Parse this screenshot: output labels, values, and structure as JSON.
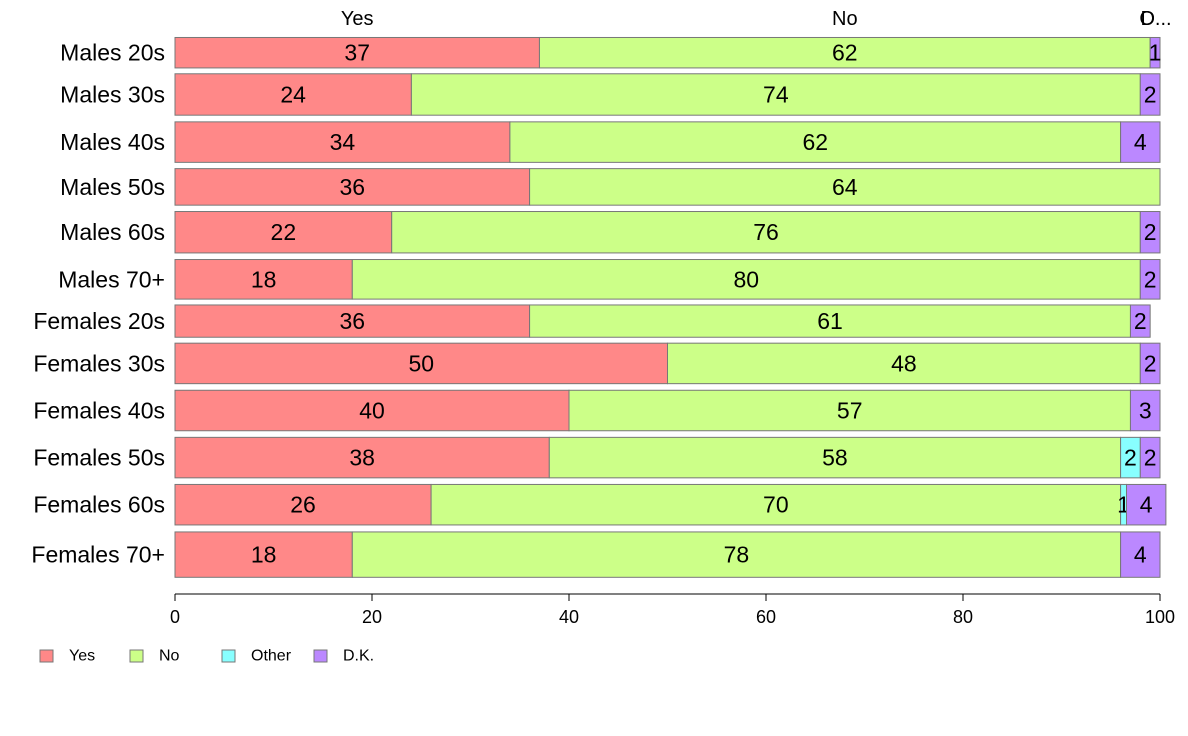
{
  "chart_data": {
    "type": "bar",
    "orientation": "horizontal",
    "stacked": true,
    "title": "",
    "xlabel": "",
    "ylabel": "",
    "xlim": [
      0,
      100
    ],
    "xticks": [
      0,
      20,
      40,
      60,
      80,
      100
    ],
    "grid": false,
    "legend_position": "bottom-left",
    "categories": [
      "Males 20s",
      "Males 30s",
      "Males 40s",
      "Males 50s",
      "Males 60s",
      "Males 70+",
      "Females 20s",
      "Females 30s",
      "Females 40s",
      "Females 50s",
      "Females 60s",
      "Females 70+"
    ],
    "relative_row_heights": [
      1,
      1.36,
      1.33,
      1.2,
      1.36,
      1.3,
      1.06,
      1.33,
      1.33,
      1.33,
      1.33,
      1.49
    ],
    "series": [
      {
        "name": "Yes",
        "color": "#ff8888",
        "values": [
          37,
          24,
          34,
          36,
          22,
          18,
          36,
          50,
          40,
          38,
          26,
          18
        ]
      },
      {
        "name": "No",
        "color": "#ccff88",
        "values": [
          62,
          74,
          62,
          64,
          76,
          80,
          61,
          48,
          57,
          58,
          70,
          78
        ]
      },
      {
        "name": "Other",
        "color": "#88ffff",
        "values": [
          0,
          0,
          0,
          0,
          0,
          0,
          0,
          0,
          0,
          2,
          0.6,
          0
        ]
      },
      {
        "name": "D.K.",
        "color": "#bb88ff",
        "values": [
          1,
          2,
          4,
          0,
          2,
          2,
          2,
          2,
          3,
          2,
          4,
          4
        ]
      }
    ],
    "segment_labels": [
      [
        "37",
        "62",
        "",
        "1"
      ],
      [
        "24",
        "74",
        "",
        "2"
      ],
      [
        "34",
        "62",
        "",
        "4"
      ],
      [
        "36",
        "64",
        "",
        ""
      ],
      [
        "22",
        "76",
        "",
        "2"
      ],
      [
        "18",
        "80",
        "",
        "2"
      ],
      [
        "36",
        "61",
        "",
        "2"
      ],
      [
        "50",
        "48",
        "",
        "2"
      ],
      [
        "40",
        "57",
        "",
        "3"
      ],
      [
        "38",
        "58",
        "2",
        "2"
      ],
      [
        "26",
        "70",
        "1",
        "4"
      ],
      [
        "18",
        "78",
        "",
        "4"
      ]
    ],
    "top_labels": [
      "Yes",
      "No",
      "O",
      "D..."
    ]
  }
}
